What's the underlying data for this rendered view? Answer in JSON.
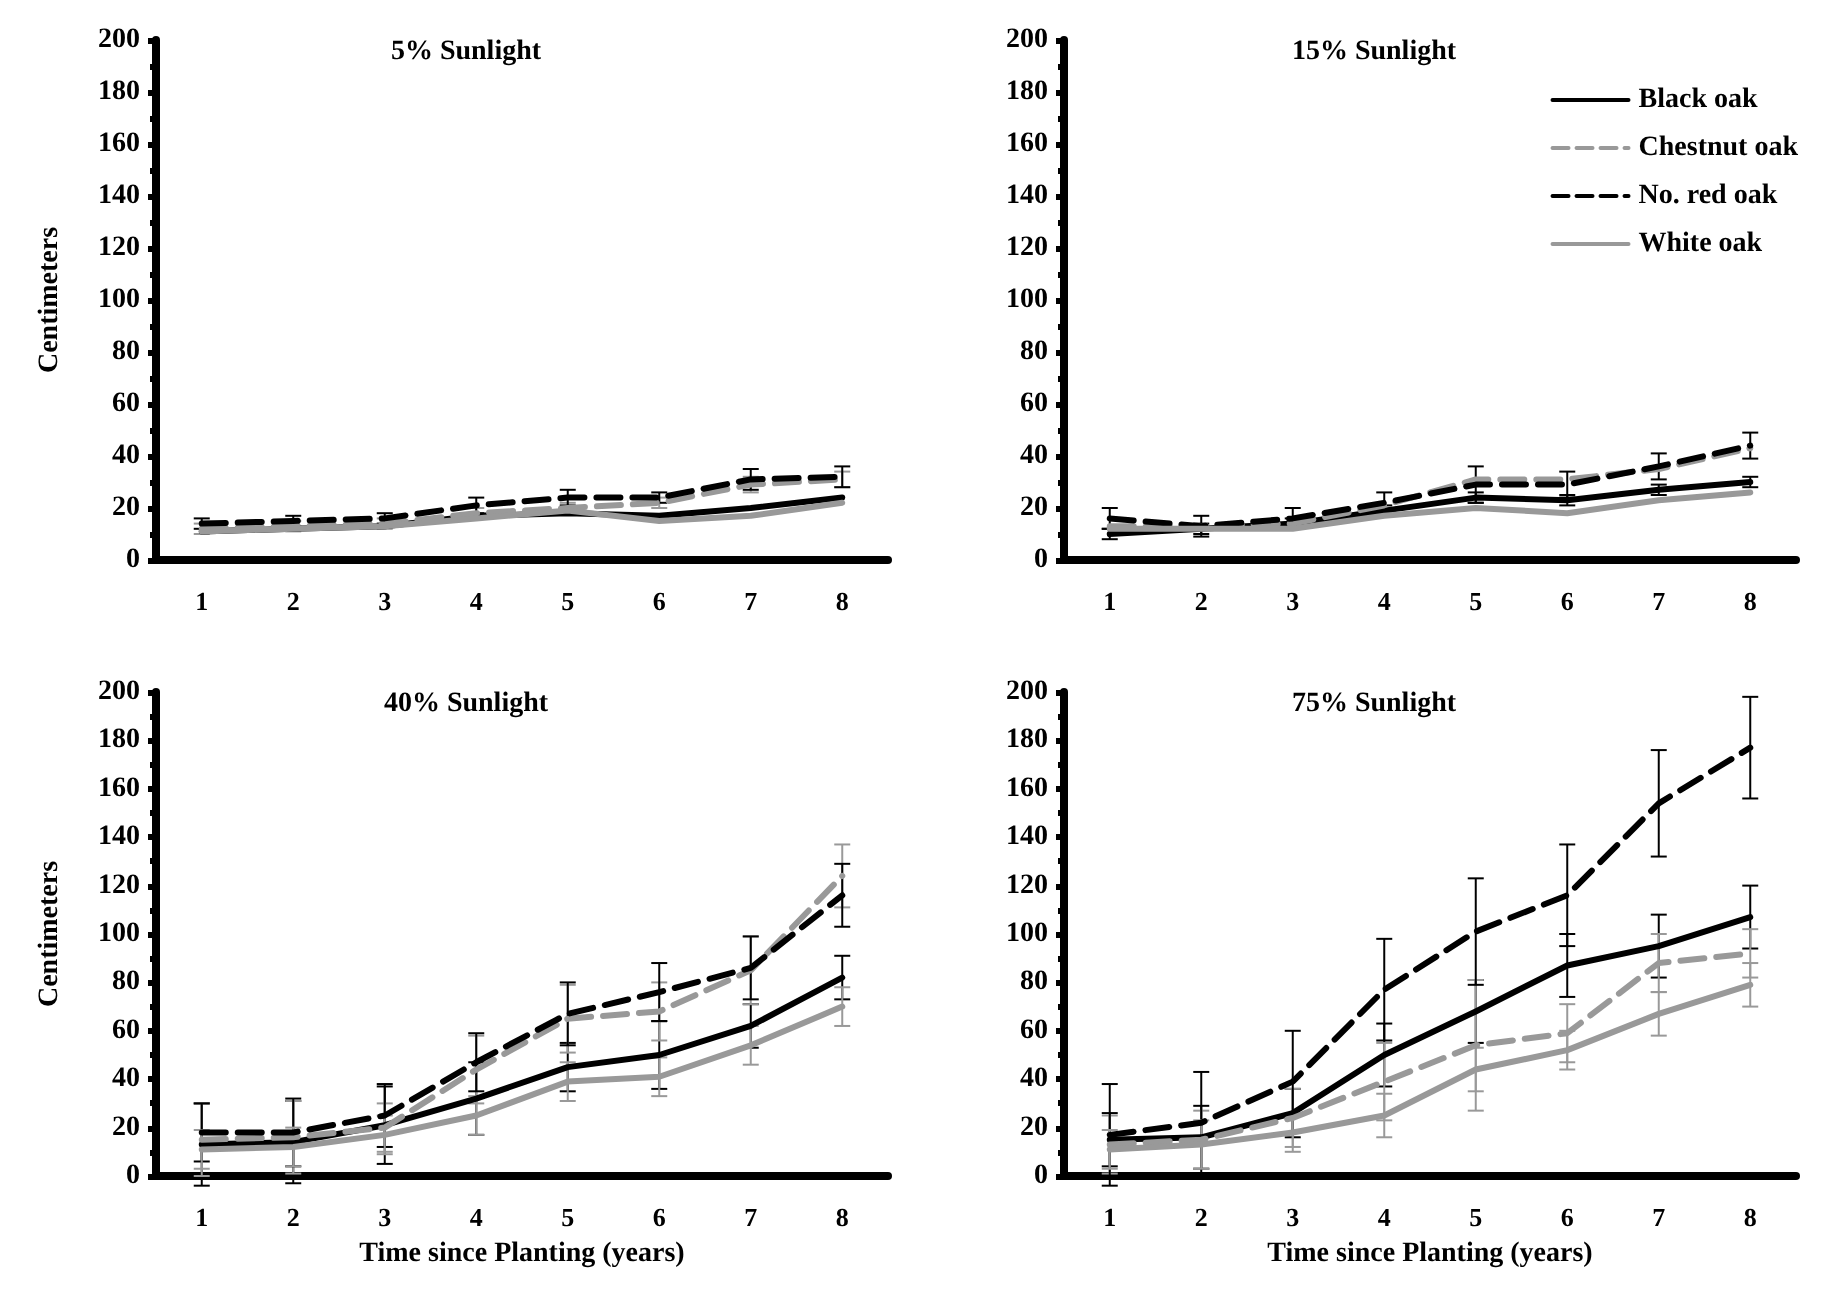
{
  "chart_data": [
    {
      "type": "line",
      "title": "5% Sunlight",
      "ylabel": "Centimeters",
      "categories": [
        "1",
        "2",
        "3",
        "4",
        "5",
        "6",
        "7",
        "8"
      ],
      "ylim": [
        0,
        200
      ],
      "yticks": [
        0,
        20,
        40,
        60,
        80,
        100,
        120,
        140,
        160,
        180,
        200
      ],
      "grid": false,
      "legend": false,
      "marker": "none",
      "series": [
        {
          "color": "#000000",
          "line_style": "solid",
          "values": [
            11,
            12,
            13,
            17,
            18,
            17,
            20,
            24
          ]
        },
        {
          "color": "#999999",
          "line_style": "dashed",
          "values": [
            12,
            13,
            14,
            18,
            20,
            22,
            29,
            31
          ],
          "errors": [
            2,
            2,
            2,
            2,
            2,
            2,
            3,
            3
          ]
        },
        {
          "color": "#000000",
          "line_style": "dashed",
          "values": [
            14,
            15,
            16,
            21,
            24,
            24,
            31,
            32
          ],
          "errors": [
            2,
            2,
            2,
            3,
            3,
            2,
            4,
            4
          ]
        },
        {
          "color": "#999999",
          "line_style": "solid",
          "values": [
            11,
            12,
            13,
            16,
            19,
            15,
            17,
            22
          ]
        }
      ]
    },
    {
      "type": "line",
      "title": "15% Sunlight",
      "categories": [
        "1",
        "2",
        "3",
        "4",
        "5",
        "6",
        "7",
        "8"
      ],
      "ylim": [
        0,
        200
      ],
      "yticks": [
        0,
        20,
        40,
        60,
        80,
        100,
        120,
        140,
        160,
        180,
        200
      ],
      "grid": false,
      "legend": "top right",
      "marker": "none",
      "series": [
        {
          "name": "Black oak",
          "color": "#000000",
          "line_style": "solid",
          "values": [
            10,
            12,
            14,
            19,
            24,
            23,
            27,
            30
          ],
          "errors": [
            2,
            2,
            2,
            2,
            2,
            2,
            2,
            2
          ]
        },
        {
          "name": "Chestnut oak",
          "color": "#999999",
          "line_style": "dashed",
          "values": [
            13,
            13,
            14,
            21,
            31,
            31,
            35,
            43
          ]
        },
        {
          "name": "No. red oak",
          "color": "#000000",
          "line_style": "dashed",
          "values": [
            16,
            13,
            16,
            22,
            29,
            29,
            36,
            44
          ],
          "errors": [
            4,
            4,
            4,
            4,
            7,
            5,
            5,
            5
          ]
        },
        {
          "name": "White oak",
          "color": "#999999",
          "line_style": "solid",
          "values": [
            12,
            12,
            12,
            17,
            20,
            18,
            23,
            26
          ]
        }
      ]
    },
    {
      "type": "line",
      "title": "40% Sunlight",
      "ylabel": "Centimeters",
      "xlabel": "Time since Planting (years)",
      "categories": [
        "1",
        "2",
        "3",
        "4",
        "5",
        "6",
        "7",
        "8"
      ],
      "ylim": [
        0,
        200
      ],
      "yticks": [
        0,
        20,
        40,
        60,
        80,
        100,
        120,
        140,
        160,
        180,
        200
      ],
      "grid": false,
      "legend": false,
      "marker": "none",
      "series": [
        {
          "color": "#000000",
          "line_style": "solid",
          "values": [
            13,
            14,
            21,
            32,
            45,
            50,
            62,
            82
          ],
          "errors": [
            17,
            17,
            16,
            15,
            10,
            14,
            9,
            9
          ]
        },
        {
          "color": "#999999",
          "line_style": "dashed",
          "values": [
            15,
            16,
            20,
            44,
            65,
            68,
            85,
            124
          ],
          "errors": [
            15,
            15,
            10,
            14,
            14,
            12,
            14,
            13
          ]
        },
        {
          "color": "#000000",
          "line_style": "dashed",
          "values": [
            18,
            18,
            25,
            47,
            67,
            76,
            86,
            116
          ],
          "errors": [
            12,
            14,
            13,
            12,
            13,
            12,
            13,
            13
          ]
        },
        {
          "color": "#999999",
          "line_style": "solid",
          "values": [
            11,
            12,
            17,
            25,
            39,
            41,
            54,
            70
          ],
          "errors": [
            8,
            8,
            8,
            8,
            8,
            8,
            8,
            8
          ]
        }
      ]
    },
    {
      "type": "line",
      "title": "75% Sunlight",
      "xlabel": "Time since Planting (years)",
      "categories": [
        "1",
        "2",
        "3",
        "4",
        "5",
        "6",
        "7",
        "8"
      ],
      "ylim": [
        0,
        200
      ],
      "yticks": [
        0,
        20,
        40,
        60,
        80,
        100,
        120,
        140,
        160,
        180,
        200
      ],
      "grid": false,
      "legend": false,
      "marker": "none",
      "series": [
        {
          "color": "#000000",
          "line_style": "solid",
          "values": [
            15,
            16,
            26,
            50,
            68,
            87,
            95,
            107
          ],
          "errors": [
            11,
            13,
            10,
            13,
            13,
            13,
            13,
            13
          ]
        },
        {
          "color": "#999999",
          "line_style": "dashed",
          "values": [
            13,
            15,
            24,
            39,
            54,
            59,
            88,
            92
          ],
          "errors": [
            12,
            12,
            12,
            16,
            27,
            12,
            12,
            10
          ]
        },
        {
          "color": "#000000",
          "line_style": "dashed",
          "values": [
            17,
            22,
            39,
            77,
            101,
            116,
            154,
            177
          ],
          "errors": [
            21,
            21,
            21,
            21,
            22,
            21,
            22,
            21
          ]
        },
        {
          "color": "#999999",
          "line_style": "solid",
          "values": [
            11,
            13,
            18,
            25,
            44,
            52,
            67,
            79
          ],
          "errors": [
            8,
            10,
            8,
            9,
            9,
            8,
            9,
            9
          ]
        }
      ]
    }
  ]
}
